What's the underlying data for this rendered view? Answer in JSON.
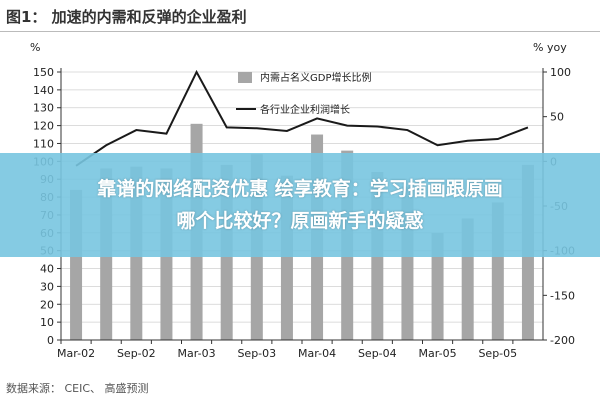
{
  "figure_title": "图1： 加速的内需和反弹的企业盈利",
  "source": "数据来源： CEIC、 高盛预测",
  "banner": {
    "line1": "靠谱的网络配资优惠 绘享教育：学习插画跟原画",
    "line2": "哪个比较好？原画新手的疑惑"
  },
  "colors": {
    "bar": "#a6a6a6",
    "line": "#1a1a1a",
    "banner": "#78c5e0"
  },
  "chart_data": {
    "type": "bar+line",
    "legend_placement": "top-center",
    "left_axis": {
      "unit_label": "%",
      "range": [
        0,
        150
      ],
      "ticks": [
        0,
        10,
        20,
        30,
        40,
        50,
        60,
        70,
        80,
        90,
        100,
        110,
        120,
        130,
        140,
        150
      ]
    },
    "right_axis": {
      "unit_label": "% yoy",
      "range": [
        -200,
        100
      ],
      "ticks": [
        -200,
        -150,
        -100,
        -50,
        0,
        50,
        100
      ]
    },
    "x_tick_labels": [
      "Mar-02",
      "Sep-02",
      "Mar-03",
      "Sep-03",
      "Mar-04",
      "Sep-04",
      "Mar-05",
      "Sep-05"
    ],
    "periods": [
      "Mar-02",
      "Jun-02",
      "Sep-02",
      "Dec-02",
      "Mar-03",
      "Jun-03",
      "Sep-03",
      "Dec-03",
      "Mar-04",
      "Jun-04",
      "Sep-04",
      "Dec-04",
      "Mar-05",
      "Jun-05",
      "Sep-05",
      "Dec-05"
    ],
    "series": [
      {
        "name": "内需占名义GDP增长比例",
        "type": "bar",
        "axis": "left",
        "values": [
          84,
          96,
          97,
          96,
          121,
          98,
          104,
          92,
          115,
          106,
          94,
          86,
          60,
          68,
          77,
          98
        ]
      },
      {
        "name": "各行业企业利润增长",
        "type": "line",
        "axis": "right",
        "values": [
          -5,
          18,
          35,
          31,
          100,
          38,
          37,
          34,
          48,
          40,
          39,
          35,
          18,
          23,
          25,
          38
        ]
      }
    ]
  }
}
